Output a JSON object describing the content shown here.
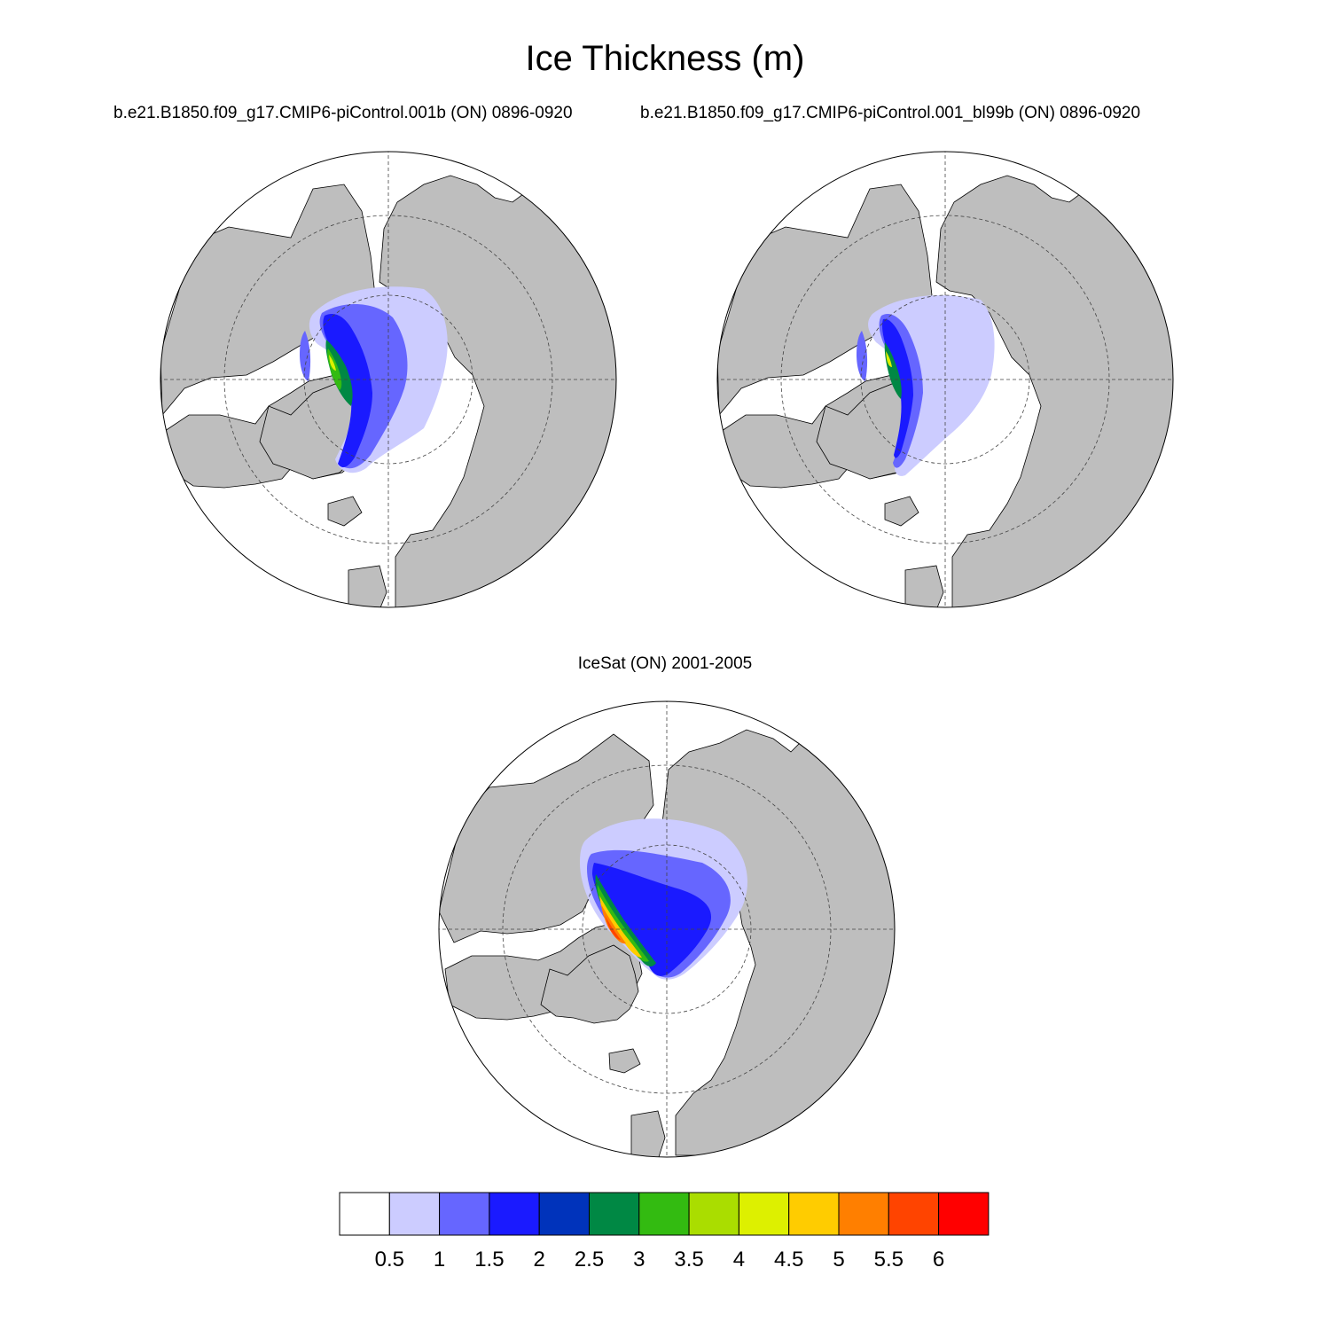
{
  "figure": {
    "title": "Ice Thickness (m)",
    "panels": [
      {
        "subtitle": "b.e21.B1850.f09_g17.CMIP6-piControl.001b (ON) 0896-0920"
      },
      {
        "subtitle": "b.e21.B1850.f09_g17.CMIP6-piControl.001_bl99b (ON) 0896-0920"
      },
      {
        "subtitle": "IceSat (ON) 2001-2005"
      }
    ]
  },
  "colors": {
    "land": "#bebebe",
    "levels": [
      "#ffffff",
      "#ccccff",
      "#6666ff",
      "#1a1aff",
      "#0033bb",
      "#008844",
      "#33bb11",
      "#aadd00",
      "#ddf000",
      "#ffcc00",
      "#ff7f00",
      "#ff4400",
      "#ff0000"
    ]
  },
  "chart_data": {
    "type": "heatmap",
    "projection": "north polar stereographic",
    "variable": "Ice Thickness (m)",
    "colorbar": {
      "ticks": [
        "0.5",
        "1",
        "1.5",
        "2",
        "2.5",
        "3",
        "3.5",
        "4",
        "4.5",
        "5",
        "5.5",
        "6"
      ],
      "levels": [
        0.5,
        1,
        1.5,
        2,
        2.5,
        3,
        3.5,
        4,
        4.5,
        5,
        5.5,
        6
      ]
    },
    "panels": [
      {
        "source": "b.e21.B1850.f09_g17.CMIP6-piControl.001b",
        "season": "ON",
        "years": "0896-0920"
      },
      {
        "source": "b.e21.B1850.f09_g17.CMIP6-piControl.001_bl99b",
        "season": "ON",
        "years": "0896-0920"
      },
      {
        "source": "IceSat",
        "season": "ON",
        "years": "2001-2005"
      }
    ]
  }
}
